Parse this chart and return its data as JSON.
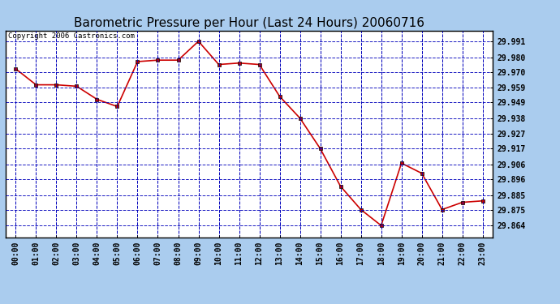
{
  "title": "Barometric Pressure per Hour (Last 24 Hours) 20060716",
  "copyright": "Copyright 2006 Castronics.com",
  "hours": [
    "00:00",
    "01:00",
    "02:00",
    "03:00",
    "04:00",
    "05:00",
    "06:00",
    "07:00",
    "08:00",
    "09:00",
    "10:00",
    "11:00",
    "12:00",
    "13:00",
    "14:00",
    "15:00",
    "16:00",
    "17:00",
    "18:00",
    "19:00",
    "20:00",
    "21:00",
    "22:00",
    "23:00"
  ],
  "values": [
    29.972,
    29.961,
    29.961,
    29.96,
    29.951,
    29.946,
    29.977,
    29.978,
    29.978,
    29.991,
    29.975,
    29.976,
    29.975,
    29.953,
    29.938,
    29.917,
    29.891,
    29.875,
    29.864,
    29.907,
    29.9,
    29.875,
    29.88,
    29.881
  ],
  "yticks": [
    29.991,
    29.98,
    29.97,
    29.959,
    29.949,
    29.938,
    29.927,
    29.917,
    29.906,
    29.896,
    29.885,
    29.875,
    29.864
  ],
  "ymin": 29.856,
  "ymax": 29.9985,
  "line_color": "#cc0000",
  "marker_color": "#cc0000",
  "plot_bg_color": "#ffffff",
  "fig_bg_color": "#aaccee",
  "grid_color": "#0000bb",
  "title_color": "#000000",
  "border_color": "#000000",
  "title_fontsize": 11,
  "copyright_fontsize": 6.5,
  "tick_fontsize": 7,
  "ytick_fontsize": 7
}
